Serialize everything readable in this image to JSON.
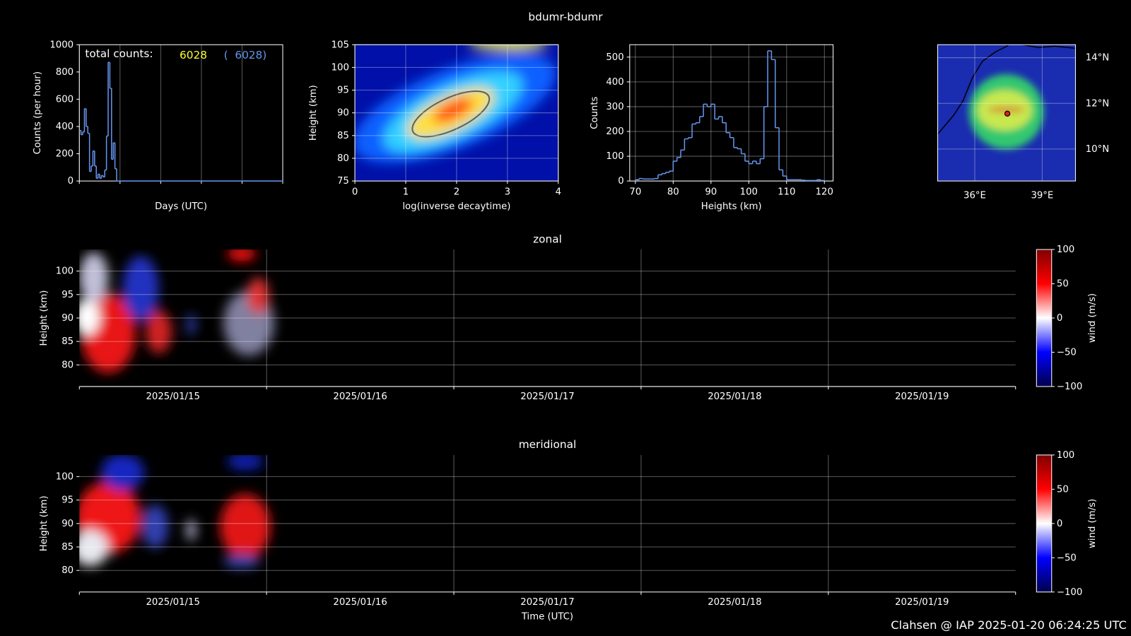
{
  "title": "bdumr-bdumr",
  "footer": "Clahsen @ IAP 2025-01-20 06:24:25 UTC",
  "chart_data": [
    {
      "type": "line",
      "step": true,
      "xlabel": "Days (UTC)",
      "ylabel": "Counts (per hour)",
      "annotation": {
        "label": "total counts:",
        "total": 6028,
        "total_all": "(  6028)"
      },
      "x": [
        0,
        1,
        2,
        3,
        4,
        5,
        6,
        7,
        8,
        9,
        10,
        11,
        12,
        13,
        14,
        15,
        16,
        17,
        18,
        19,
        20,
        21,
        22
      ],
      "values": [
        370,
        340,
        360,
        530,
        400,
        350,
        70,
        110,
        220,
        110,
        20,
        50,
        20,
        40,
        30,
        80,
        330,
        870,
        680,
        160,
        280,
        90,
        0
      ],
      "color": "#6495ed",
      "xlim": [
        0,
        120
      ],
      "xticks": [
        0,
        24,
        48,
        72,
        96,
        120
      ],
      "ylim": [
        0,
        1000
      ],
      "yticks": [
        0,
        200,
        400,
        600,
        800,
        1000
      ],
      "grid": "x"
    },
    {
      "type": "heatmap",
      "xlabel": "log(inverse decaytime)",
      "ylabel": "Height (km)",
      "xlim": [
        0,
        4
      ],
      "xticks": [
        0,
        1,
        2,
        3,
        4
      ],
      "ylim": [
        75,
        105
      ],
      "yticks": [
        75,
        80,
        85,
        90,
        95,
        100,
        105
      ],
      "grid": true
    },
    {
      "type": "histogram",
      "xlabel": "Heights (km)",
      "ylabel": "Counts",
      "color": "#6495ed",
      "bins": [
        70,
        71,
        72,
        73,
        74,
        75,
        76,
        77,
        78,
        79,
        80,
        81,
        82,
        83,
        84,
        85,
        86,
        87,
        88,
        89,
        90,
        91,
        92,
        93,
        94,
        95,
        96,
        97,
        98,
        99,
        100,
        101,
        102,
        103,
        104,
        105,
        106,
        107,
        108,
        109,
        110,
        111,
        112,
        113,
        114,
        115,
        116,
        117,
        118,
        119,
        120
      ],
      "values": [
        5,
        10,
        8,
        8,
        8,
        10,
        25,
        30,
        35,
        40,
        80,
        95,
        125,
        170,
        175,
        230,
        235,
        260,
        310,
        300,
        310,
        250,
        260,
        235,
        195,
        175,
        135,
        130,
        110,
        80,
        70,
        80,
        70,
        90,
        300,
        525,
        490,
        215,
        45,
        20,
        5,
        5,
        5,
        5,
        3,
        2,
        2,
        2,
        5,
        2
      ],
      "xlim": [
        68.5,
        122.3
      ],
      "xticks": [
        70,
        80,
        90,
        100,
        110,
        120
      ],
      "ylim": [
        0,
        550
      ],
      "yticks": [
        0,
        100,
        200,
        300,
        400,
        500
      ],
      "grid": true
    },
    {
      "type": "map",
      "xlim": [
        34.35,
        40.48
      ],
      "ylim": [
        8.6,
        14.57
      ],
      "xticks": [
        {
          "value": 36,
          "label": "36°E"
        },
        {
          "value": 39,
          "label": "39°E"
        }
      ],
      "yticks": [
        {
          "value": 10,
          "label": "10°N"
        },
        {
          "value": 12,
          "label": "12°N"
        },
        {
          "value": 14,
          "label": "14°N"
        }
      ],
      "station": {
        "lon": 37.45,
        "lat": 11.55
      },
      "grid": true
    },
    {
      "type": "heatmap",
      "title": "zonal",
      "ylabel": "Height (km)",
      "categories": [
        "2025/01/15",
        "2025/01/16",
        "2025/01/17",
        "2025/01/18",
        "2025/01/19"
      ],
      "ylim": [
        75.4,
        104.6
      ],
      "yticks": [
        80,
        85,
        90,
        95,
        100
      ],
      "grid": true,
      "colorbar": {
        "label": "wind (m/s)",
        "lim": [
          -100,
          100
        ],
        "ticks": [
          {
            "value": -100,
            "label": "−100"
          },
          {
            "value": -50,
            "label": "−50"
          },
          0,
          50,
          100
        ]
      }
    },
    {
      "type": "heatmap",
      "title": "meridional",
      "xlabel": "Time (UTC)",
      "ylabel": "Height (km)",
      "categories": [
        "2025/01/15",
        "2025/01/16",
        "2025/01/17",
        "2025/01/18",
        "2025/01/19"
      ],
      "ylim": [
        75.4,
        104.6
      ],
      "yticks": [
        80,
        85,
        90,
        95,
        100
      ],
      "grid": true,
      "colorbar": {
        "label": "wind (m/s)",
        "lim": [
          -100,
          100
        ],
        "ticks": [
          {
            "value": -100,
            "label": "−100"
          },
          {
            "value": -50,
            "label": "−50"
          },
          0,
          50,
          100
        ]
      }
    }
  ]
}
